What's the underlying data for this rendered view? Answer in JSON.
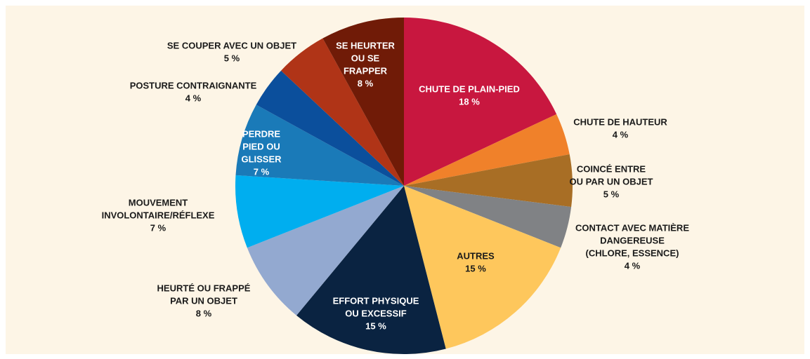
{
  "chart_data": {
    "type": "pie",
    "categories": [
      [
        "CHUTE DE PLAIN-PIED"
      ],
      [
        "CHUTE DE HAUTEUR"
      ],
      [
        "COINCÉ ENTRE",
        "OU PAR UN OBJET"
      ],
      [
        "CONTACT AVEC MATIÈRE",
        "DANGEREUSE",
        "(CHLORE, ESSENCE)"
      ],
      [
        "AUTRES"
      ],
      [
        "EFFORT PHYSIQUE",
        "OU EXCESSIF"
      ],
      [
        "HEURTÉ OU FRAPPÉ",
        "PAR UN OBJET"
      ],
      [
        "MOUVEMENT",
        "INVOLONTAIRE/RÉFLEXE"
      ],
      [
        "PERDRE",
        "PIED OU",
        "GLISSER"
      ],
      [
        "POSTURE CONTRAIGNANTE"
      ],
      [
        "SE COUPER AVEC UN OBJET"
      ],
      [
        "SE HEURTER",
        "OU SE",
        "FRAPPER"
      ]
    ],
    "values": [
      18,
      4,
      5,
      4,
      15,
      15,
      8,
      7,
      7,
      4,
      5,
      8
    ],
    "value_labels": [
      "18 %",
      "4 %",
      "5 %",
      "4 %",
      "15 %",
      "15 %",
      "8 %",
      "7 %",
      "7 %",
      "4 %",
      "5 %",
      "8 %"
    ],
    "colors": [
      "#c8173f",
      "#f0812a",
      "#a86e25",
      "#808285",
      "#fec75c",
      "#0a2341",
      "#93a9d0",
      "#00aeef",
      "#1a7ab8",
      "#0b4f9c",
      "#b03417",
      "#701b07"
    ]
  }
}
